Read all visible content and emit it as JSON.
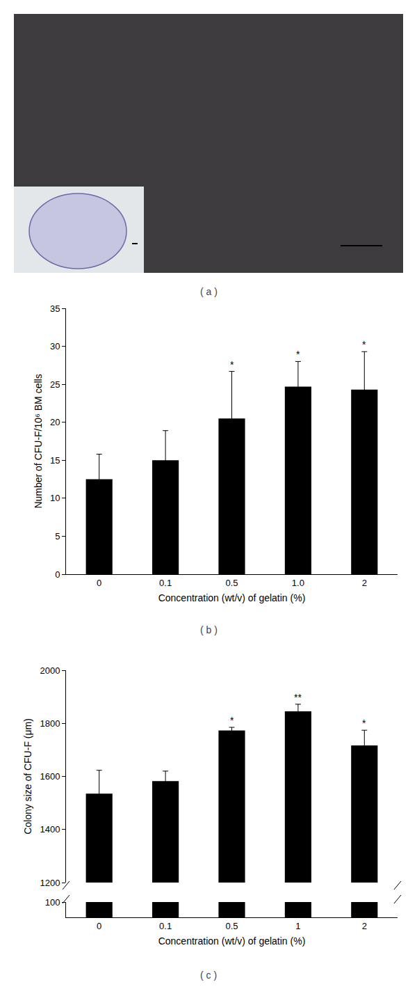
{
  "image_panel": {
    "label": "( a )"
  },
  "chart_data": [
    {
      "type": "bar",
      "panel": "( b )",
      "x_label": "Concentration (wt/v) of gelatin (%)",
      "y_label": "Number of CFU-F/10⁶ BM cells",
      "categories": [
        "0",
        "0.1",
        "0.5",
        "1.0",
        "2"
      ],
      "values": [
        12.5,
        15.0,
        20.5,
        24.7,
        24.3
      ],
      "errors": [
        3.3,
        3.9,
        6.2,
        3.3,
        5.0
      ],
      "significance": [
        null,
        null,
        "*",
        "*",
        "*"
      ],
      "color": "#000000",
      "ylim": [
        0,
        35
      ],
      "yticks": [
        0,
        5,
        10,
        15,
        20,
        25,
        30,
        35
      ],
      "grid": false
    },
    {
      "type": "bar",
      "panel": "( c )",
      "x_label": "Concentration (wt/v) of gelatin (%)",
      "y_label": "Colony size of CFU-F (μm)",
      "categories": [
        "0",
        "0.1",
        "0.5",
        "1",
        "2"
      ],
      "values": [
        1535,
        1582,
        1773,
        1845,
        1717
      ],
      "errors": [
        88,
        38,
        12,
        27,
        57
      ],
      "significance": [
        null,
        null,
        "*",
        "**",
        "*"
      ],
      "color": "#000000",
      "ylim": [
        1200,
        2000
      ],
      "yticks": [
        1200,
        1400,
        1600,
        1800,
        2000
      ],
      "ylim_lower": [
        0,
        100
      ],
      "yticks_lower": [
        100
      ],
      "grid": false
    }
  ]
}
